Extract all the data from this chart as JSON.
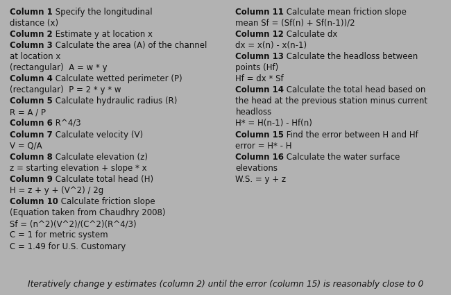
{
  "bg_color": "#b2b2b2",
  "panel_color": "#a0a0a0",
  "left_lines": [
    [
      true,
      "Column 1",
      false,
      " Specify the longitudinal"
    ],
    [
      false,
      "",
      false,
      "distance (x)"
    ],
    [
      true,
      "Column 2",
      false,
      " Estimate y at location x"
    ],
    [
      true,
      "Column 3",
      false,
      " Calculate the area (A) of the channel"
    ],
    [
      false,
      "",
      false,
      "at location x"
    ],
    [
      false,
      "",
      false,
      "(rectangular)  A = w * y"
    ],
    [
      true,
      "Column 4",
      false,
      " Calculate wetted perimeter (P)"
    ],
    [
      false,
      "",
      false,
      "(rectangular)  P = 2 * y * w"
    ],
    [
      true,
      "Column 5",
      false,
      " Calculate hydraulic radius (R)"
    ],
    [
      false,
      "",
      false,
      "R = A / P"
    ],
    [
      true,
      "Column 6",
      false,
      " R^4/3"
    ],
    [
      true,
      "Column 7",
      false,
      " Calculate velocity (V)"
    ],
    [
      false,
      "",
      false,
      "V = Q/A"
    ],
    [
      true,
      "Column 8",
      false,
      " Calculate elevation (z)"
    ],
    [
      false,
      "",
      false,
      "z = starting elevation + slope * x"
    ],
    [
      true,
      "Column 9",
      false,
      " Calculate total head (H)"
    ],
    [
      false,
      "",
      false,
      "H = z + y + (V^2) / 2g"
    ],
    [
      true,
      "Column 10",
      false,
      " Calculate friction slope"
    ],
    [
      false,
      "",
      false,
      "(Equation taken from Chaudhry 2008)"
    ],
    [
      false,
      "",
      false,
      "Sf = (n^2)(V^2)/(C^2)(R^4/3)"
    ],
    [
      false,
      "",
      false,
      "C = 1 for metric system"
    ],
    [
      false,
      "",
      false,
      "C = 1.49 for U.S. Customary"
    ]
  ],
  "right_lines": [
    [
      true,
      "Column 11",
      false,
      " Calculate mean friction slope"
    ],
    [
      false,
      "",
      false,
      "mean Sf = (Sf(n) + Sf(n-1))/2"
    ],
    [
      true,
      "Column 12",
      false,
      " Calculate dx"
    ],
    [
      false,
      "",
      false,
      "dx = x(n) - x(n-1)"
    ],
    [
      true,
      "Column 13",
      false,
      " Calculate the headloss between"
    ],
    [
      false,
      "",
      false,
      "points (Hf)"
    ],
    [
      false,
      "",
      false,
      "Hf = dx * Sf"
    ],
    [
      true,
      "Column 14",
      false,
      " Calculate the total head based on"
    ],
    [
      false,
      "",
      false,
      "the head at the previous station minus current"
    ],
    [
      false,
      "",
      false,
      "headloss"
    ],
    [
      false,
      "",
      false,
      "H* = H(n-1) - Hf(n)"
    ],
    [
      true,
      "Column 15",
      false,
      " Find the error between H and Hf"
    ],
    [
      false,
      "",
      false,
      "error = H* - H"
    ],
    [
      true,
      "Column 16",
      false,
      " Calculate the water surface"
    ],
    [
      false,
      "",
      false,
      "elevations"
    ],
    [
      false,
      "",
      false,
      "W.S. = y + z"
    ]
  ],
  "footer": "Iteratively change y estimates (column 2) until the error (column 15) is reasonably close to 0",
  "fontsize": 8.5,
  "footer_fontsize": 8.8
}
